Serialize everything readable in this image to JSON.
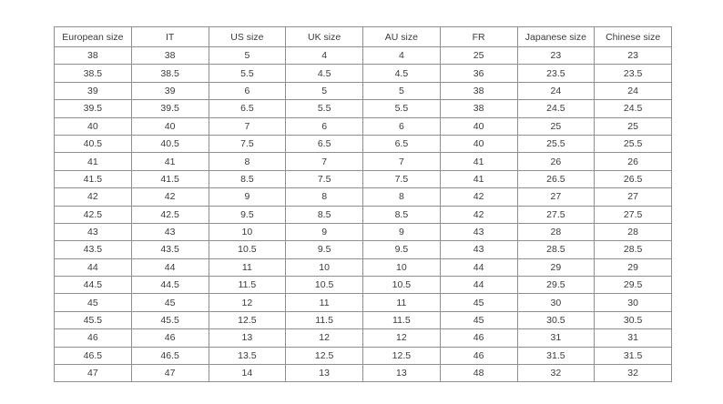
{
  "colors": {
    "page_background": "#ffffff",
    "grid_border": "#8f8f8f",
    "cell_text": "#3a3a3a"
  },
  "chart_data": {
    "type": "table",
    "columns": [
      "European size",
      "IT",
      "US size",
      "UK size",
      "AU size",
      "FR",
      "Japanese size",
      "Chinese size"
    ],
    "rows": [
      [
        "38",
        "38",
        "5",
        "4",
        "4",
        "25",
        "23",
        "23"
      ],
      [
        "38.5",
        "38.5",
        "5.5",
        "4.5",
        "4.5",
        "36",
        "23.5",
        "23.5"
      ],
      [
        "39",
        "39",
        "6",
        "5",
        "5",
        "38",
        "24",
        "24"
      ],
      [
        "39.5",
        "39.5",
        "6.5",
        "5.5",
        "5.5",
        "38",
        "24.5",
        "24.5"
      ],
      [
        "40",
        "40",
        "7",
        "6",
        "6",
        "40",
        "25",
        "25"
      ],
      [
        "40.5",
        "40.5",
        "7.5",
        "6.5",
        "6.5",
        "40",
        "25.5",
        "25.5"
      ],
      [
        "41",
        "41",
        "8",
        "7",
        "7",
        "41",
        "26",
        "26"
      ],
      [
        "41.5",
        "41.5",
        "8.5",
        "7.5",
        "7.5",
        "41",
        "26.5",
        "26.5"
      ],
      [
        "42",
        "42",
        "9",
        "8",
        "8",
        "42",
        "27",
        "27"
      ],
      [
        "42.5",
        "42.5",
        "9.5",
        "8.5",
        "8.5",
        "42",
        "27.5",
        "27.5"
      ],
      [
        "43",
        "43",
        "10",
        "9",
        "9",
        "43",
        "28",
        "28"
      ],
      [
        "43.5",
        "43.5",
        "10.5",
        "9.5",
        "9.5",
        "43",
        "28.5",
        "28.5"
      ],
      [
        "44",
        "44",
        "11",
        "10",
        "10",
        "44",
        "29",
        "29"
      ],
      [
        "44.5",
        "44.5",
        "11.5",
        "10.5",
        "10.5",
        "44",
        "29.5",
        "29.5"
      ],
      [
        "45",
        "45",
        "12",
        "11",
        "11",
        "45",
        "30",
        "30"
      ],
      [
        "45.5",
        "45.5",
        "12.5",
        "11.5",
        "11.5",
        "45",
        "30.5",
        "30.5"
      ],
      [
        "46",
        "46",
        "13",
        "12",
        "12",
        "46",
        "31",
        "31"
      ],
      [
        "46.5",
        "46.5",
        "13.5",
        "12.5",
        "12.5",
        "46",
        "31.5",
        "31.5"
      ],
      [
        "47",
        "47",
        "14",
        "13",
        "13",
        "48",
        "32",
        "32"
      ]
    ]
  }
}
